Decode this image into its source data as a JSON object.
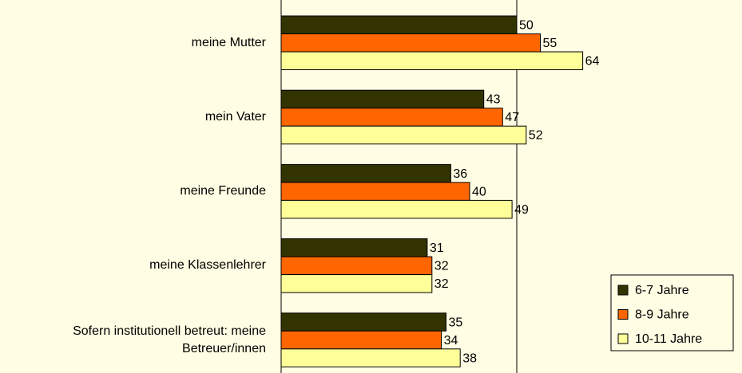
{
  "chart_data": {
    "type": "bar",
    "orientation": "horizontal",
    "categories": [
      "meine Mutter",
      "mein Vater",
      "meine Freunde",
      "meine Klassenlehrer",
      "Sofern institutionell betreut: meine Betreuer/innen"
    ],
    "series": [
      {
        "name": "6-7 Jahre",
        "color": "#333300",
        "values": [
          50,
          43,
          36,
          31,
          35
        ]
      },
      {
        "name": "8-9 Jahre",
        "color": "#ff6600",
        "values": [
          55,
          47,
          40,
          32,
          34
        ]
      },
      {
        "name": "10-11 Jahre",
        "color": "#ffff99",
        "values": [
          64,
          52,
          49,
          32,
          38
        ]
      }
    ],
    "xlim": [
      0,
      100
    ],
    "legend": "lower right"
  }
}
